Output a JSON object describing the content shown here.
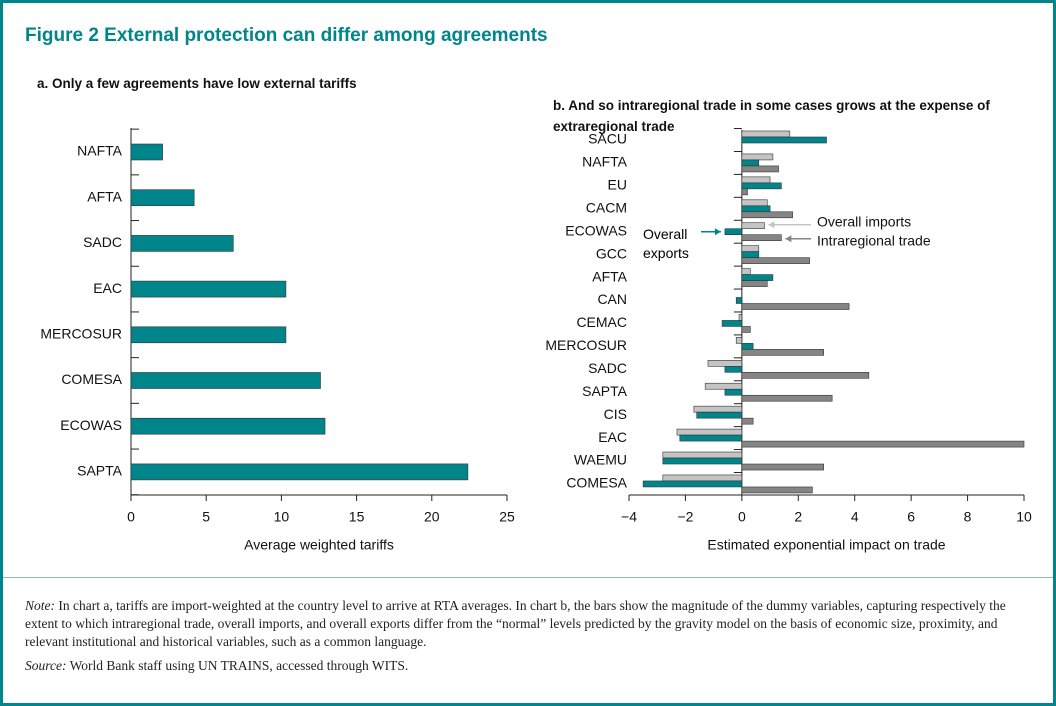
{
  "figure_title": "Figure 2  External protection can differ among agreements",
  "chart_data": [
    {
      "type": "bar",
      "orientation": "horizontal",
      "title": "a. Only a few agreements have low external tariffs",
      "x_label": "Average weighted tariffs",
      "categories": [
        "NAFTA",
        "AFTA",
        "SADC",
        "EAC",
        "MERCOSUR",
        "COMESA",
        "ECOWAS",
        "SAPTA"
      ],
      "values": [
        2.1,
        4.2,
        6.8,
        10.3,
        10.3,
        12.6,
        12.9,
        22.4
      ],
      "color": "#00858a",
      "xlim": [
        0,
        25
      ],
      "xticks": [
        0,
        5,
        10,
        15,
        20,
        25
      ]
    },
    {
      "type": "bar",
      "orientation": "horizontal",
      "title": "b. And so intraregional trade in some cases grows at the expense of extraregional trade",
      "x_label": "Estimated exponential impact on trade",
      "categories": [
        "SACU",
        "NAFTA",
        "EU",
        "CACM",
        "ECOWAS",
        "GCC",
        "AFTA",
        "CAN",
        "CEMAC",
        "MERCOSUR",
        "SADC",
        "SAPTA",
        "CIS",
        "EAC",
        "WAEMU",
        "COMESA"
      ],
      "series": [
        {
          "name": "Overall imports",
          "color": "#c4c4c4",
          "values": [
            1.7,
            1.1,
            1.0,
            0.9,
            0.8,
            0.6,
            0.3,
            null,
            -0.1,
            -0.2,
            -1.2,
            -1.3,
            -1.7,
            -2.3,
            -2.8,
            -2.8
          ]
        },
        {
          "name": "Overall exports",
          "color": "#00858a",
          "values": [
            3.0,
            0.6,
            1.4,
            1.0,
            -0.6,
            0.6,
            1.1,
            -0.2,
            -0.7,
            0.4,
            -0.6,
            -0.6,
            -1.6,
            -2.2,
            -2.8,
            -3.5
          ]
        },
        {
          "name": "Intraregional trade",
          "color": "#858585",
          "values": [
            null,
            1.3,
            0.2,
            1.8,
            1.4,
            2.4,
            0.9,
            3.8,
            0.3,
            2.9,
            4.5,
            3.2,
            0.4,
            10.0,
            2.9,
            2.5
          ]
        }
      ],
      "xlim": [
        -4,
        10
      ],
      "xticks": [
        {
          "value": -4,
          "label": "−4"
        },
        {
          "value": -2,
          "label": "−2"
        },
        0,
        2,
        4,
        6,
        8,
        10
      ]
    }
  ],
  "note": {
    "label": "Note:",
    "text": "In chart a, tariffs are import-weighted at the country level to arrive at RTA averages. In chart b, the bars show the magnitude of the dummy variables, capturing respectively the extent to which intraregional trade, overall imports, and overall exports differ from the “normal” levels predicted by the gravity model on the basis of economic size, proximity, and relevant institutional and historical variables, such as a common language."
  },
  "source": {
    "label": "Source:",
    "text": "World Bank staff using UN TRAINS, accessed through WITS."
  }
}
